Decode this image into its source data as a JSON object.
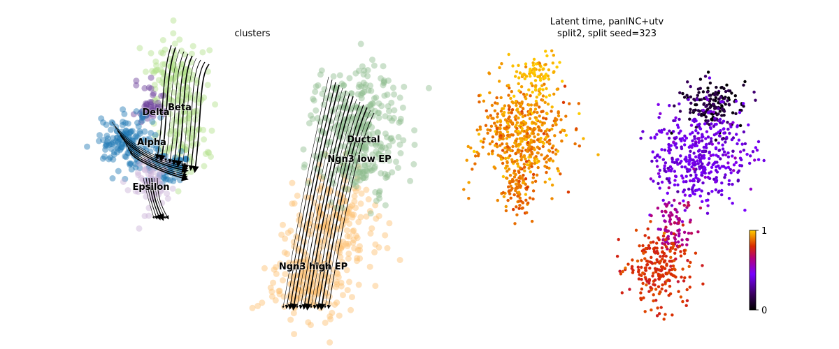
{
  "chart_data": [
    {
      "type": "scatter",
      "title": "clusters",
      "xlabel": "",
      "ylabel": "",
      "embedding": "umap",
      "overlay": "velocity streamlines",
      "axes": "off",
      "categories": [
        "Ductal",
        "Ngn3 low EP",
        "Ngn3 high EP",
        "Alpha",
        "Beta",
        "Delta",
        "Epsilon"
      ],
      "colors": {
        "Ductal": "#8fbc8f",
        "Ngn3 low EP": "#8fbc8f",
        "Ngn3 high EP": "#fdbf6f",
        "Alpha": "#1f78b4",
        "Beta": "#b2df8a",
        "Delta": "#6a3d9a",
        "Epsilon": "#cab2d6"
      },
      "cluster_labels": [
        {
          "name": "Beta"
        },
        {
          "name": "Delta"
        },
        {
          "name": "Alpha"
        },
        {
          "name": "Epsilon"
        },
        {
          "name": "Ductal"
        },
        {
          "name": "Ngn3 low EP"
        },
        {
          "name": "Ngn3 high EP"
        }
      ]
    },
    {
      "type": "scatter",
      "title": [
        "Latent time, panINC+utv",
        "split2, split seed=323"
      ],
      "xlabel": "",
      "ylabel": "",
      "axes": "off",
      "colormap": "gnuplot",
      "colorbar": {
        "min": 0,
        "max": 1,
        "ticks": [
          "1",
          "0"
        ]
      },
      "colors": {
        "low": "#000000",
        "mid": "#7700ff",
        "high": "#ffcc00"
      }
    }
  ]
}
